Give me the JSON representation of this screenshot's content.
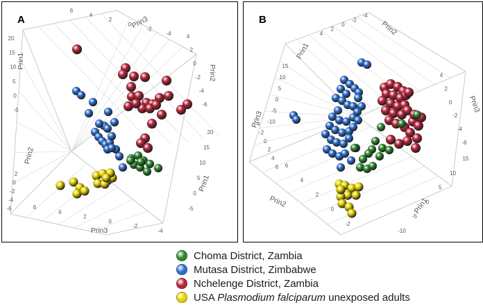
{
  "chart_data": [
    {
      "type": "scatter",
      "subtype": "3d-scatter",
      "panel_label": "A",
      "axes": {
        "prin1": {
          "label": "Prin1",
          "ticks_left": [
            "20",
            "15",
            "10",
            "5",
            "0",
            "-5"
          ],
          "ticks_right": [
            "20",
            "15",
            "10",
            "5",
            "0",
            "-5"
          ]
        },
        "prin2": {
          "label": "Prin2",
          "ticks_left": [
            "2",
            "0",
            "-2",
            "-4",
            "-6"
          ],
          "ticks_right": [
            "4",
            "2",
            "0",
            "-2",
            "-4",
            "-6"
          ]
        },
        "prin3": {
          "label": "Prin3",
          "ticks_top": [
            "6",
            "4",
            "2",
            "0",
            "-2",
            "-4"
          ],
          "ticks_bottom": [
            "6",
            "4",
            "2",
            "0",
            "-2",
            "-4"
          ]
        }
      },
      "series": [
        {
          "name": "Choma District, Zambia",
          "points": [
            [
              1,
              2,
              -1
            ],
            [
              1.5,
              2.5,
              -1.5
            ],
            [
              0.5,
              2,
              -0.5
            ]
          ]
        },
        {
          "name": "Mutasa District, Zimbabwe",
          "points": [
            [
              6,
              3,
              1
            ],
            [
              5,
              2.5,
              1.5
            ],
            [
              4,
              3.5,
              0.5
            ]
          ]
        },
        {
          "name": "Nchelenge District, Zambia",
          "points": [
            [
              12,
              -3,
              -2
            ],
            [
              10,
              -2,
              -3
            ],
            [
              15,
              -4,
              -1
            ]
          ]
        },
        {
          "name": "USA Plasmodium falciparum unexposed adults",
          "points": [
            [
              -3,
              1,
              3
            ],
            [
              -4,
              1.5,
              3.5
            ],
            [
              -3.5,
              0.5,
              2.5
            ]
          ]
        }
      ]
    },
    {
      "type": "scatter",
      "subtype": "3d-scatter",
      "panel_label": "B",
      "axes": {
        "prin1": {
          "label": "Prin1",
          "ticks_top": [
            "15",
            "10",
            "5",
            "0",
            "-5",
            "-10"
          ],
          "ticks_bottom": [
            "15",
            "10",
            "5",
            "0",
            "-5",
            "-10"
          ]
        },
        "prin2": {
          "label": "Prin2",
          "ticks_top": [
            "4",
            "2",
            "0",
            "-2",
            "-4"
          ],
          "ticks_bottom": [
            "6",
            "4",
            "2",
            "0",
            "-2"
          ]
        },
        "prin3": {
          "label": "Prin3",
          "ticks_left": [
            "-4",
            "-2",
            "0",
            "2",
            "4",
            "6"
          ],
          "ticks_right": [
            "4",
            "2",
            "0",
            "-2",
            "-4",
            "-6"
          ]
        }
      },
      "series": [
        {
          "name": "Choma District, Zambia",
          "points": [
            [
              2,
              -1,
              1
            ],
            [
              1.5,
              -0.5,
              1.5
            ],
            [
              2.5,
              -1.5,
              0.5
            ]
          ]
        },
        {
          "name": "Mutasa District, Zimbabwe",
          "points": [
            [
              5,
              2,
              -2
            ],
            [
              6,
              1.5,
              -1.5
            ],
            [
              4,
              2.5,
              -2.5
            ]
          ]
        },
        {
          "name": "Nchelenge District, Zambia",
          "points": [
            [
              8,
              -3,
              2
            ],
            [
              9,
              -2.5,
              2.5
            ],
            [
              7,
              -3.5,
              1.5
            ]
          ]
        },
        {
          "name": "USA Plasmodium falciparum unexposed adults",
          "points": [
            [
              -2,
              1,
              1
            ],
            [
              -2.5,
              0.5,
              1.5
            ],
            [
              -1.5,
              1.5,
              0.5
            ]
          ]
        }
      ]
    }
  ],
  "legend": {
    "items": [
      {
        "name": "choma",
        "text": "Choma District, Zambia",
        "color": "#2e8b2e"
      },
      {
        "name": "mutasa",
        "text": "Mutasa District, Zimbabwe",
        "color": "#2f6fd0"
      },
      {
        "name": "nchelenge",
        "text": "Nchelenge District, Zambia",
        "color": "#b8263c"
      },
      {
        "name": "usa",
        "text_before": "USA ",
        "text_italic": "Plasmodium falciparum",
        "text_after": " unexposed adults",
        "color": "#e6d400"
      }
    ]
  }
}
